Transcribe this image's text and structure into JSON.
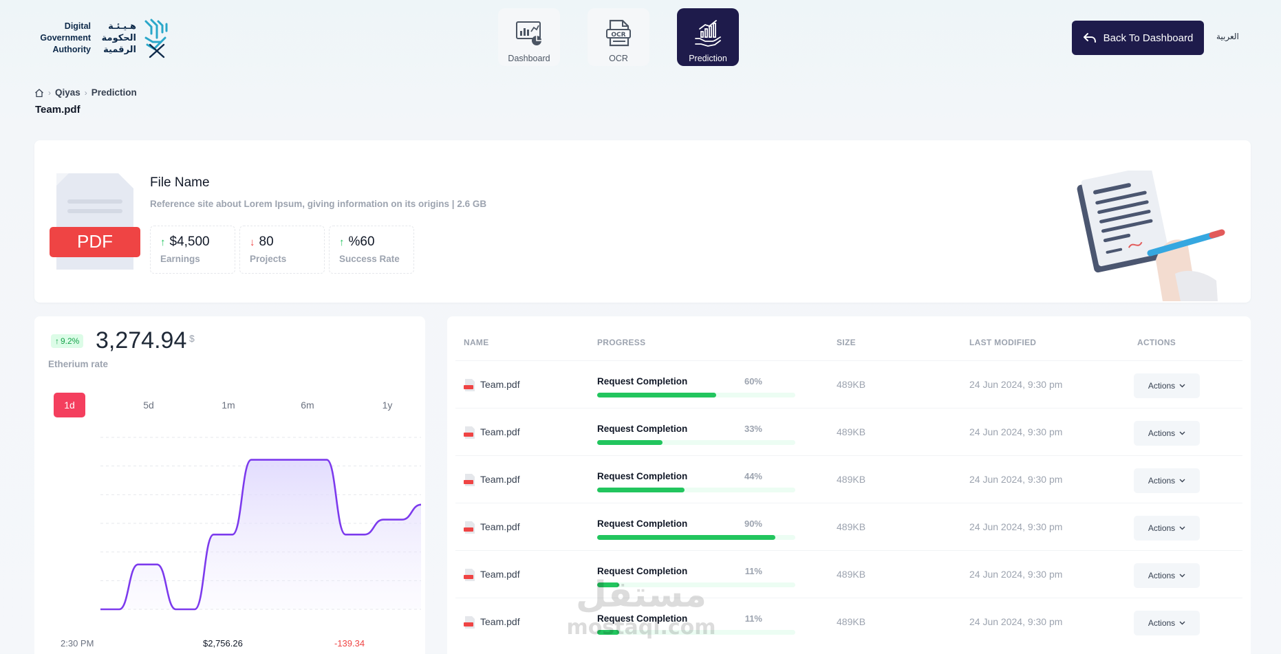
{
  "header": {
    "logo": {
      "en_lines": [
        "Digital",
        "Government",
        "Authority"
      ],
      "ar_lines": [
        "هـيـئـة",
        "الحكومة",
        "الرقمية"
      ]
    },
    "nav": [
      {
        "label": "Dashboard",
        "icon": "dashboard-chart-icon",
        "active": false
      },
      {
        "label": "OCR",
        "icon": "ocr-document-icon",
        "active": false
      },
      {
        "label": "Prediction",
        "icon": "prediction-hand-chart-icon",
        "active": true
      }
    ],
    "back_label": "Back To Dashboard",
    "lang_label": "العربية"
  },
  "breadcrumb": {
    "items": [
      "Qiyas",
      "Prediction"
    ]
  },
  "page_title": "Team.pdf",
  "file": {
    "name": "File Name",
    "badge": "PDF",
    "description": "Reference site about Lorem Ipsum, giving information on its origins | 2.6 GB",
    "stats": [
      {
        "value": "$4,500",
        "label": "Earnings",
        "trend": "up"
      },
      {
        "value": "80",
        "label": "Projects",
        "trend": "down"
      },
      {
        "value": "%60",
        "label": "Success Rate",
        "trend": "up"
      }
    ]
  },
  "rate": {
    "badge": "9.2%",
    "value": "3,274.94",
    "currency": "$",
    "label": "Etherium rate",
    "ranges": [
      "1d",
      "5d",
      "1m",
      "6m",
      "1y"
    ],
    "active_range": "1d",
    "footer": {
      "time": "2:30 PM",
      "price": "$2,756.26",
      "change": "-139.34"
    }
  },
  "chart_data": {
    "type": "area",
    "x": [
      0,
      1,
      2,
      3,
      4,
      5,
      6,
      7,
      8,
      9,
      10,
      11,
      12,
      13,
      14,
      15,
      16,
      17
    ],
    "values": [
      0,
      0,
      1.2,
      1.2,
      0,
      0,
      2,
      2,
      4,
      4,
      4,
      4,
      4,
      2,
      2,
      2.4,
      2.4,
      2.8
    ],
    "grid": true,
    "colors": {
      "line": "#7c3aed",
      "fill": "#ede9fe"
    }
  },
  "table": {
    "columns": [
      "NAME",
      "PROGRESS",
      "SIZE",
      "LAST MODIFIED",
      "ACTIONS"
    ],
    "rows": [
      {
        "name": "Team.pdf",
        "progress_label": "Request Completion",
        "percent": 60,
        "percent_text": "60%",
        "size": "489KB",
        "modified": "24 Jun 2024, 9:30 pm",
        "action": "Actions"
      },
      {
        "name": "Team.pdf",
        "progress_label": "Request Completion",
        "percent": 33,
        "percent_text": "33%",
        "size": "489KB",
        "modified": "24 Jun 2024, 9:30 pm",
        "action": "Actions"
      },
      {
        "name": "Team.pdf",
        "progress_label": "Request Completion",
        "percent": 44,
        "percent_text": "44%",
        "size": "489KB",
        "modified": "24 Jun 2024, 9:30 pm",
        "action": "Actions"
      },
      {
        "name": "Team.pdf",
        "progress_label": "Request Completion",
        "percent": 90,
        "percent_text": "90%",
        "size": "489KB",
        "modified": "24 Jun 2024, 9:30 pm",
        "action": "Actions"
      },
      {
        "name": "Team.pdf",
        "progress_label": "Request Completion",
        "percent": 11,
        "percent_text": "11%",
        "size": "489KB",
        "modified": "24 Jun 2024, 9:30 pm",
        "action": "Actions"
      },
      {
        "name": "Team.pdf",
        "progress_label": "Request Completion",
        "percent": 11,
        "percent_text": "11%",
        "size": "489KB",
        "modified": "24 Jun 2024, 9:30 pm",
        "action": "Actions"
      }
    ]
  },
  "watermark": {
    "text_ar": "مستقل",
    "text_en": "mostaql.com"
  },
  "colors": {
    "brand_navy": "#1e1b4b",
    "accent_red": "#f43f5e",
    "success": "#22c55e",
    "danger": "#ef4444"
  }
}
